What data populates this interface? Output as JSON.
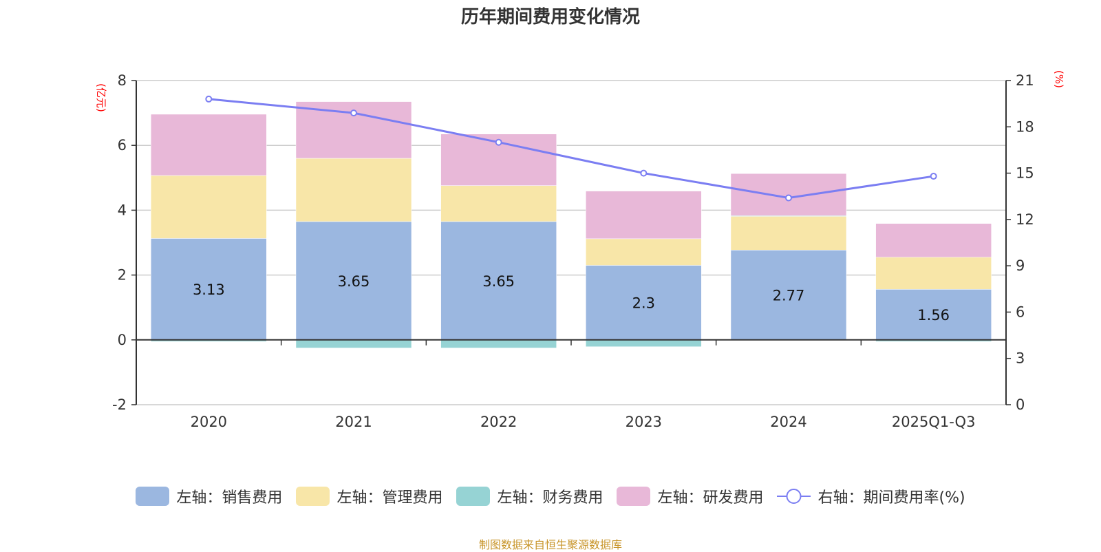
{
  "title": "历年期间费用变化情况",
  "footer": "制图数据来自恒生聚源数据库",
  "chart_data": {
    "type": "bar",
    "stacked": true,
    "title": "历年期间费用变化情况",
    "categories": [
      "2020",
      "2021",
      "2022",
      "2023",
      "2024",
      "2025Q1-Q3"
    ],
    "left_axis": {
      "unit": "(亿元)",
      "ylim": [
        -2,
        8
      ],
      "ticks": [
        -2,
        0,
        2,
        4,
        6,
        8
      ]
    },
    "right_axis": {
      "unit": "(%)",
      "ylim": [
        0,
        21
      ],
      "ticks": [
        0,
        3,
        6,
        9,
        12,
        15,
        18,
        21
      ]
    },
    "grid": true,
    "legend_position": "bottom",
    "series": [
      {
        "name": "左轴：销售费用",
        "axis": "left",
        "kind": "bar",
        "color": "#9bb7e0",
        "values": [
          3.13,
          3.65,
          3.65,
          2.3,
          2.77,
          1.56
        ],
        "show_labels": true
      },
      {
        "name": "左轴：管理费用",
        "axis": "left",
        "kind": "bar",
        "color": "#f8e6a8",
        "values": [
          1.94,
          1.95,
          1.11,
          0.82,
          1.05,
          0.99
        ]
      },
      {
        "name": "左轴：财务费用",
        "axis": "left",
        "kind": "bar",
        "color": "#96d3d4",
        "values": [
          -0.05,
          -0.25,
          -0.25,
          -0.21,
          0.01,
          -0.05
        ]
      },
      {
        "name": "左轴：研发费用",
        "axis": "left",
        "kind": "bar",
        "color": "#e8b8d8",
        "values": [
          1.89,
          1.75,
          1.59,
          1.47,
          1.3,
          1.04
        ]
      },
      {
        "name": "右轴：期间费用率(%)",
        "axis": "right",
        "kind": "line",
        "color": "#7b7ef2",
        "values": [
          19.8,
          18.9,
          17.0,
          15.0,
          13.4,
          14.8
        ]
      }
    ]
  }
}
